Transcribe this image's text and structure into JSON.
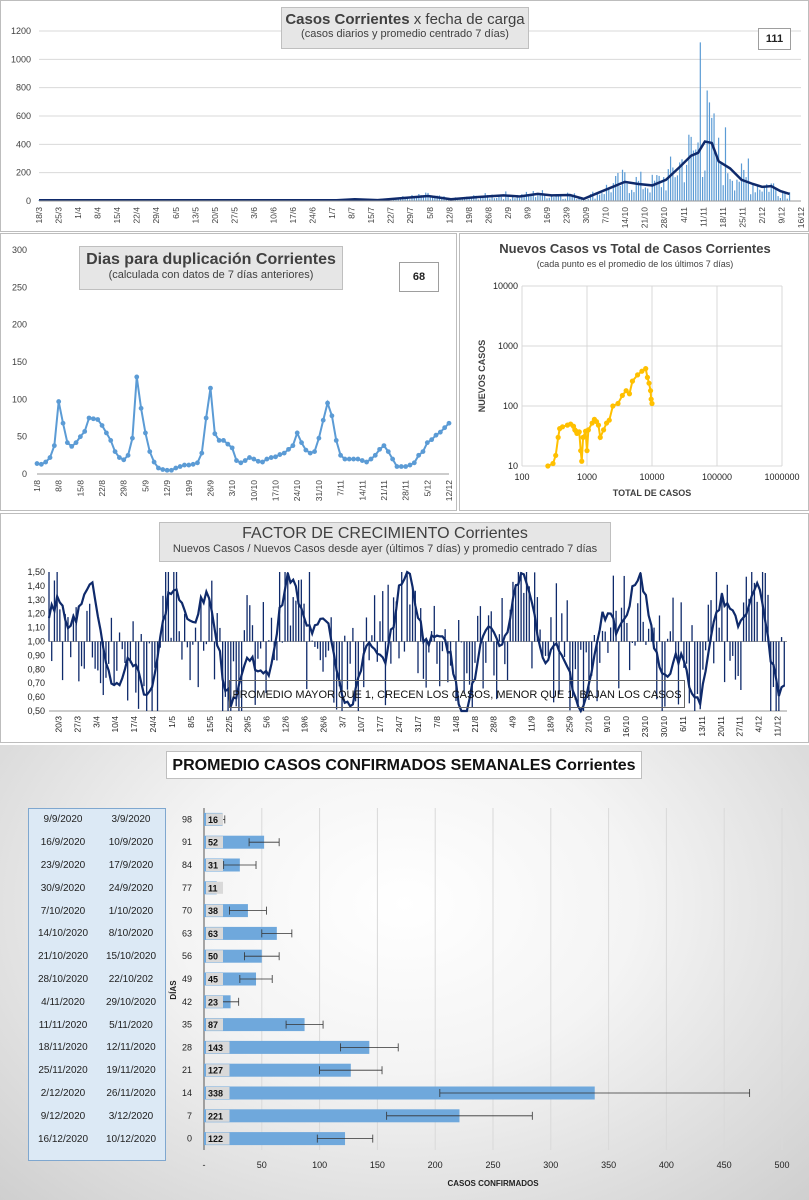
{
  "colors": {
    "navy": "#0f2a6b",
    "lightblue": "#5b9bd5",
    "gold": "#ffc000",
    "barblue": "#6fa8dc",
    "grid": "#d9d9d9",
    "text": "#404040"
  },
  "panel1": {
    "title_part1": "Casos Corrientes",
    "title_part2": " x fecha de carga",
    "subtitle": "(casos diarios y promedio  centrado 7 días)",
    "value_box": "111",
    "chart_data": {
      "type": "bar",
      "ylim": [
        0,
        1200
      ],
      "yticks": [
        0,
        200,
        400,
        600,
        800,
        1000,
        1200
      ],
      "xticks": [
        "18/3",
        "25/3",
        "1/4",
        "8/4",
        "15/4",
        "22/4",
        "29/4",
        "6/5",
        "13/5",
        "20/5",
        "27/5",
        "3/6",
        "10/6",
        "17/6",
        "24/6",
        "1/7",
        "8/7",
        "15/7",
        "22/7",
        "29/7",
        "5/8",
        "12/8",
        "19/8",
        "26/8",
        "2/9",
        "9/9",
        "16/9",
        "23/9",
        "30/9",
        "7/10",
        "14/10",
        "21/10",
        "28/10",
        "4/11",
        "11/11",
        "18/11",
        "25/11",
        "2/12",
        "9/12",
        "16/12"
      ],
      "avg_line": [
        [
          0,
          5
        ],
        [
          130,
          5
        ],
        [
          138,
          12
        ],
        [
          148,
          6
        ],
        [
          160,
          22
        ],
        [
          170,
          35
        ],
        [
          180,
          12
        ],
        [
          192,
          28
        ],
        [
          203,
          40
        ],
        [
          210,
          32
        ],
        [
          218,
          50
        ],
        [
          224,
          40
        ],
        [
          232,
          42
        ],
        [
          238,
          15
        ],
        [
          244,
          55
        ],
        [
          250,
          95
        ],
        [
          256,
          135
        ],
        [
          262,
          120
        ],
        [
          268,
          110
        ],
        [
          274,
          150
        ],
        [
          280,
          240
        ],
        [
          285,
          320
        ],
        [
          288,
          340
        ],
        [
          291,
          420
        ],
        [
          294,
          410
        ],
        [
          297,
          280
        ],
        [
          302,
          230
        ],
        [
          307,
          150
        ],
        [
          312,
          120
        ],
        [
          316,
          100
        ],
        [
          320,
          105
        ],
        [
          324,
          70
        ],
        [
          328,
          50
        ]
      ]
    }
  },
  "panel2": {
    "title": "Dias para duplicación Corrientes",
    "subtitle": "(calculada con datos de 7 días anteriores)",
    "value_box": "68",
    "chart_data": {
      "type": "line",
      "ylim": [
        0,
        300
      ],
      "yticks": [
        0,
        50,
        100,
        150,
        200,
        250,
        300
      ],
      "xticks": [
        "1/8",
        "8/8",
        "15/8",
        "22/8",
        "29/8",
        "5/9",
        "12/9",
        "19/9",
        "26/9",
        "3/10",
        "10/10",
        "17/10",
        "24/10",
        "31/10",
        "7/11",
        "14/11",
        "21/11",
        "28/11",
        "5/12",
        "12/12"
      ],
      "values": [
        14,
        13,
        16,
        22,
        38,
        97,
        68,
        42,
        37,
        42,
        50,
        57,
        75,
        74,
        73,
        65,
        55,
        45,
        30,
        22,
        19,
        25,
        48,
        130,
        88,
        55,
        30,
        16,
        8,
        6,
        5,
        5,
        8,
        10,
        12,
        12,
        13,
        15,
        28,
        75,
        115,
        54,
        45,
        45,
        40,
        35,
        18,
        15,
        18,
        22,
        20,
        17,
        16,
        20,
        22,
        23,
        26,
        28,
        33,
        38,
        55,
        42,
        32,
        28,
        30,
        48,
        72,
        95,
        78,
        45,
        25,
        20,
        20,
        20,
        20,
        18,
        16,
        20,
        25,
        33,
        38,
        30,
        20,
        10,
        10,
        10,
        12,
        15,
        25,
        30,
        42,
        46,
        52,
        56,
        62,
        68
      ]
    }
  },
  "panel3": {
    "title": "Nuevos Casos vs Total de Casos Corrientes",
    "subtitle": "(cada punto es el promedio de los últimos 7 días)",
    "xlabel": "TOTAL DE CASOS",
    "ylabel": "NUEVOS  CASOS",
    "chart_data": {
      "type": "scatter",
      "xscale": "log",
      "yscale": "log",
      "xlim": [
        100,
        1000000
      ],
      "ylim": [
        10,
        10000
      ],
      "xticks": [
        "100",
        "1000",
        "10000",
        "100000",
        "1000000"
      ],
      "yticks": [
        "10",
        "100",
        "1000",
        "10000"
      ],
      "points": [
        [
          250,
          10
        ],
        [
          300,
          11
        ],
        [
          330,
          15
        ],
        [
          360,
          30
        ],
        [
          380,
          42
        ],
        [
          420,
          45
        ],
        [
          500,
          48
        ],
        [
          560,
          50
        ],
        [
          620,
          46
        ],
        [
          650,
          40
        ],
        [
          680,
          38
        ],
        [
          700,
          35
        ],
        [
          760,
          37
        ],
        [
          800,
          18
        ],
        [
          830,
          12
        ],
        [
          870,
          30
        ],
        [
          950,
          38
        ],
        [
          1000,
          18
        ],
        [
          1050,
          40
        ],
        [
          1200,
          52
        ],
        [
          1300,
          60
        ],
        [
          1400,
          55
        ],
        [
          1500,
          48
        ],
        [
          1600,
          30
        ],
        [
          1800,
          40
        ],
        [
          2000,
          52
        ],
        [
          2200,
          58
        ],
        [
          2500,
          100
        ],
        [
          3000,
          110
        ],
        [
          3500,
          150
        ],
        [
          4000,
          180
        ],
        [
          4500,
          160
        ],
        [
          5000,
          260
        ],
        [
          6000,
          330
        ],
        [
          7000,
          380
        ],
        [
          8000,
          420
        ],
        [
          8500,
          300
        ],
        [
          9000,
          240
        ],
        [
          9500,
          180
        ],
        [
          9700,
          130
        ],
        [
          10000,
          110
        ]
      ]
    }
  },
  "panel4": {
    "title_part1": "FACTOR DE CRECIMIENTO",
    "title_part2": " Corrientes",
    "subtitle": "Nuevos Casos  / Nuevos Casos desde ayer (últimos 7 días) y promedio  centrado  7 días",
    "note": "PROMEDIO MAYOR QUE 1, CRECEN LOS CASOS, MENOR QUE 1, BAJAN LOS CASOS",
    "chart_data": {
      "type": "bar",
      "ylim": [
        0.5,
        1.5
      ],
      "yticks": [
        "0,50",
        "0,60",
        "0,70",
        "0,80",
        "0,90",
        "1,00",
        "1,10",
        "1,20",
        "1,30",
        "1,40",
        "1,50"
      ],
      "xticks": [
        "20/3",
        "27/3",
        "3/4",
        "10/4",
        "17/4",
        "24/4",
        "1/5",
        "8/5",
        "15/5",
        "22/5",
        "29/5",
        "5/6",
        "12/6",
        "19/6",
        "26/6",
        "3/7",
        "10/7",
        "17/7",
        "24/7",
        "31/7",
        "7/8",
        "14/8",
        "21/8",
        "28/8",
        "4/9",
        "11/9",
        "18/9",
        "25/9",
        "2/10",
        "9/10",
        "16/10",
        "23/10",
        "30/10",
        "6/11",
        "13/11",
        "20/11",
        "27/11",
        "4/12",
        "11/12"
      ]
    }
  },
  "panel5": {
    "title": "PROMEDIO CASOS CONFIRMADOS SEMANALES Corrientes",
    "xlabel": "CASOS CONFIRMADOS",
    "ylabel": "DÍAS",
    "chart_data": {
      "type": "bar",
      "orientation": "horizontal",
      "xlim": [
        0,
        500
      ],
      "xticks": [
        "-",
        "50",
        "100",
        "150",
        "200",
        "250",
        "300",
        "350",
        "400",
        "450",
        "500"
      ],
      "rows": [
        {
          "end": "9/9/2020",
          "start": "3/9/2020",
          "days": "98",
          "value": 16,
          "err": 2
        },
        {
          "end": "16/9/2020",
          "start": "10/9/2020",
          "days": "91",
          "value": 52,
          "err": 13
        },
        {
          "end": "23/9/2020",
          "start": "17/9/2020",
          "days": "84",
          "value": 31,
          "err": 14
        },
        {
          "end": "30/9/2020",
          "start": "24/9/2020",
          "days": "77",
          "value": 11,
          "err": 0
        },
        {
          "end": "7/10/2020",
          "start": "1/10/2020",
          "days": "70",
          "value": 38,
          "err": 16
        },
        {
          "end": "14/10/2020",
          "start": "8/10/2020",
          "days": "63",
          "value": 63,
          "err": 13
        },
        {
          "end": "21/10/2020",
          "start": "15/10/2020",
          "days": "56",
          "value": 50,
          "err": 15
        },
        {
          "end": "28/10/2020",
          "start": "22/10/202",
          "days": "49",
          "value": 45,
          "err": 14
        },
        {
          "end": "4/11/2020",
          "start": "29/10/2020",
          "days": "42",
          "value": 23,
          "err": 7
        },
        {
          "end": "11/11/2020",
          "start": "5/11/2020",
          "days": "35",
          "value": 87,
          "err": 16
        },
        {
          "end": "18/11/2020",
          "start": "12/11/2020",
          "days": "28",
          "value": 143,
          "err": 25
        },
        {
          "end": "25/11/2020",
          "start": "19/11/2020",
          "days": "21",
          "value": 127,
          "err": 27
        },
        {
          "end": "2/12/2020",
          "start": "26/11/2020",
          "days": "14",
          "value": 338,
          "err": 134
        },
        {
          "end": "9/12/2020",
          "start": "3/12/2020",
          "days": "7",
          "value": 221,
          "err": 63
        },
        {
          "end": "16/12/2020",
          "start": "10/12/2020",
          "days": "0",
          "value": 122,
          "err": 24
        }
      ]
    }
  }
}
